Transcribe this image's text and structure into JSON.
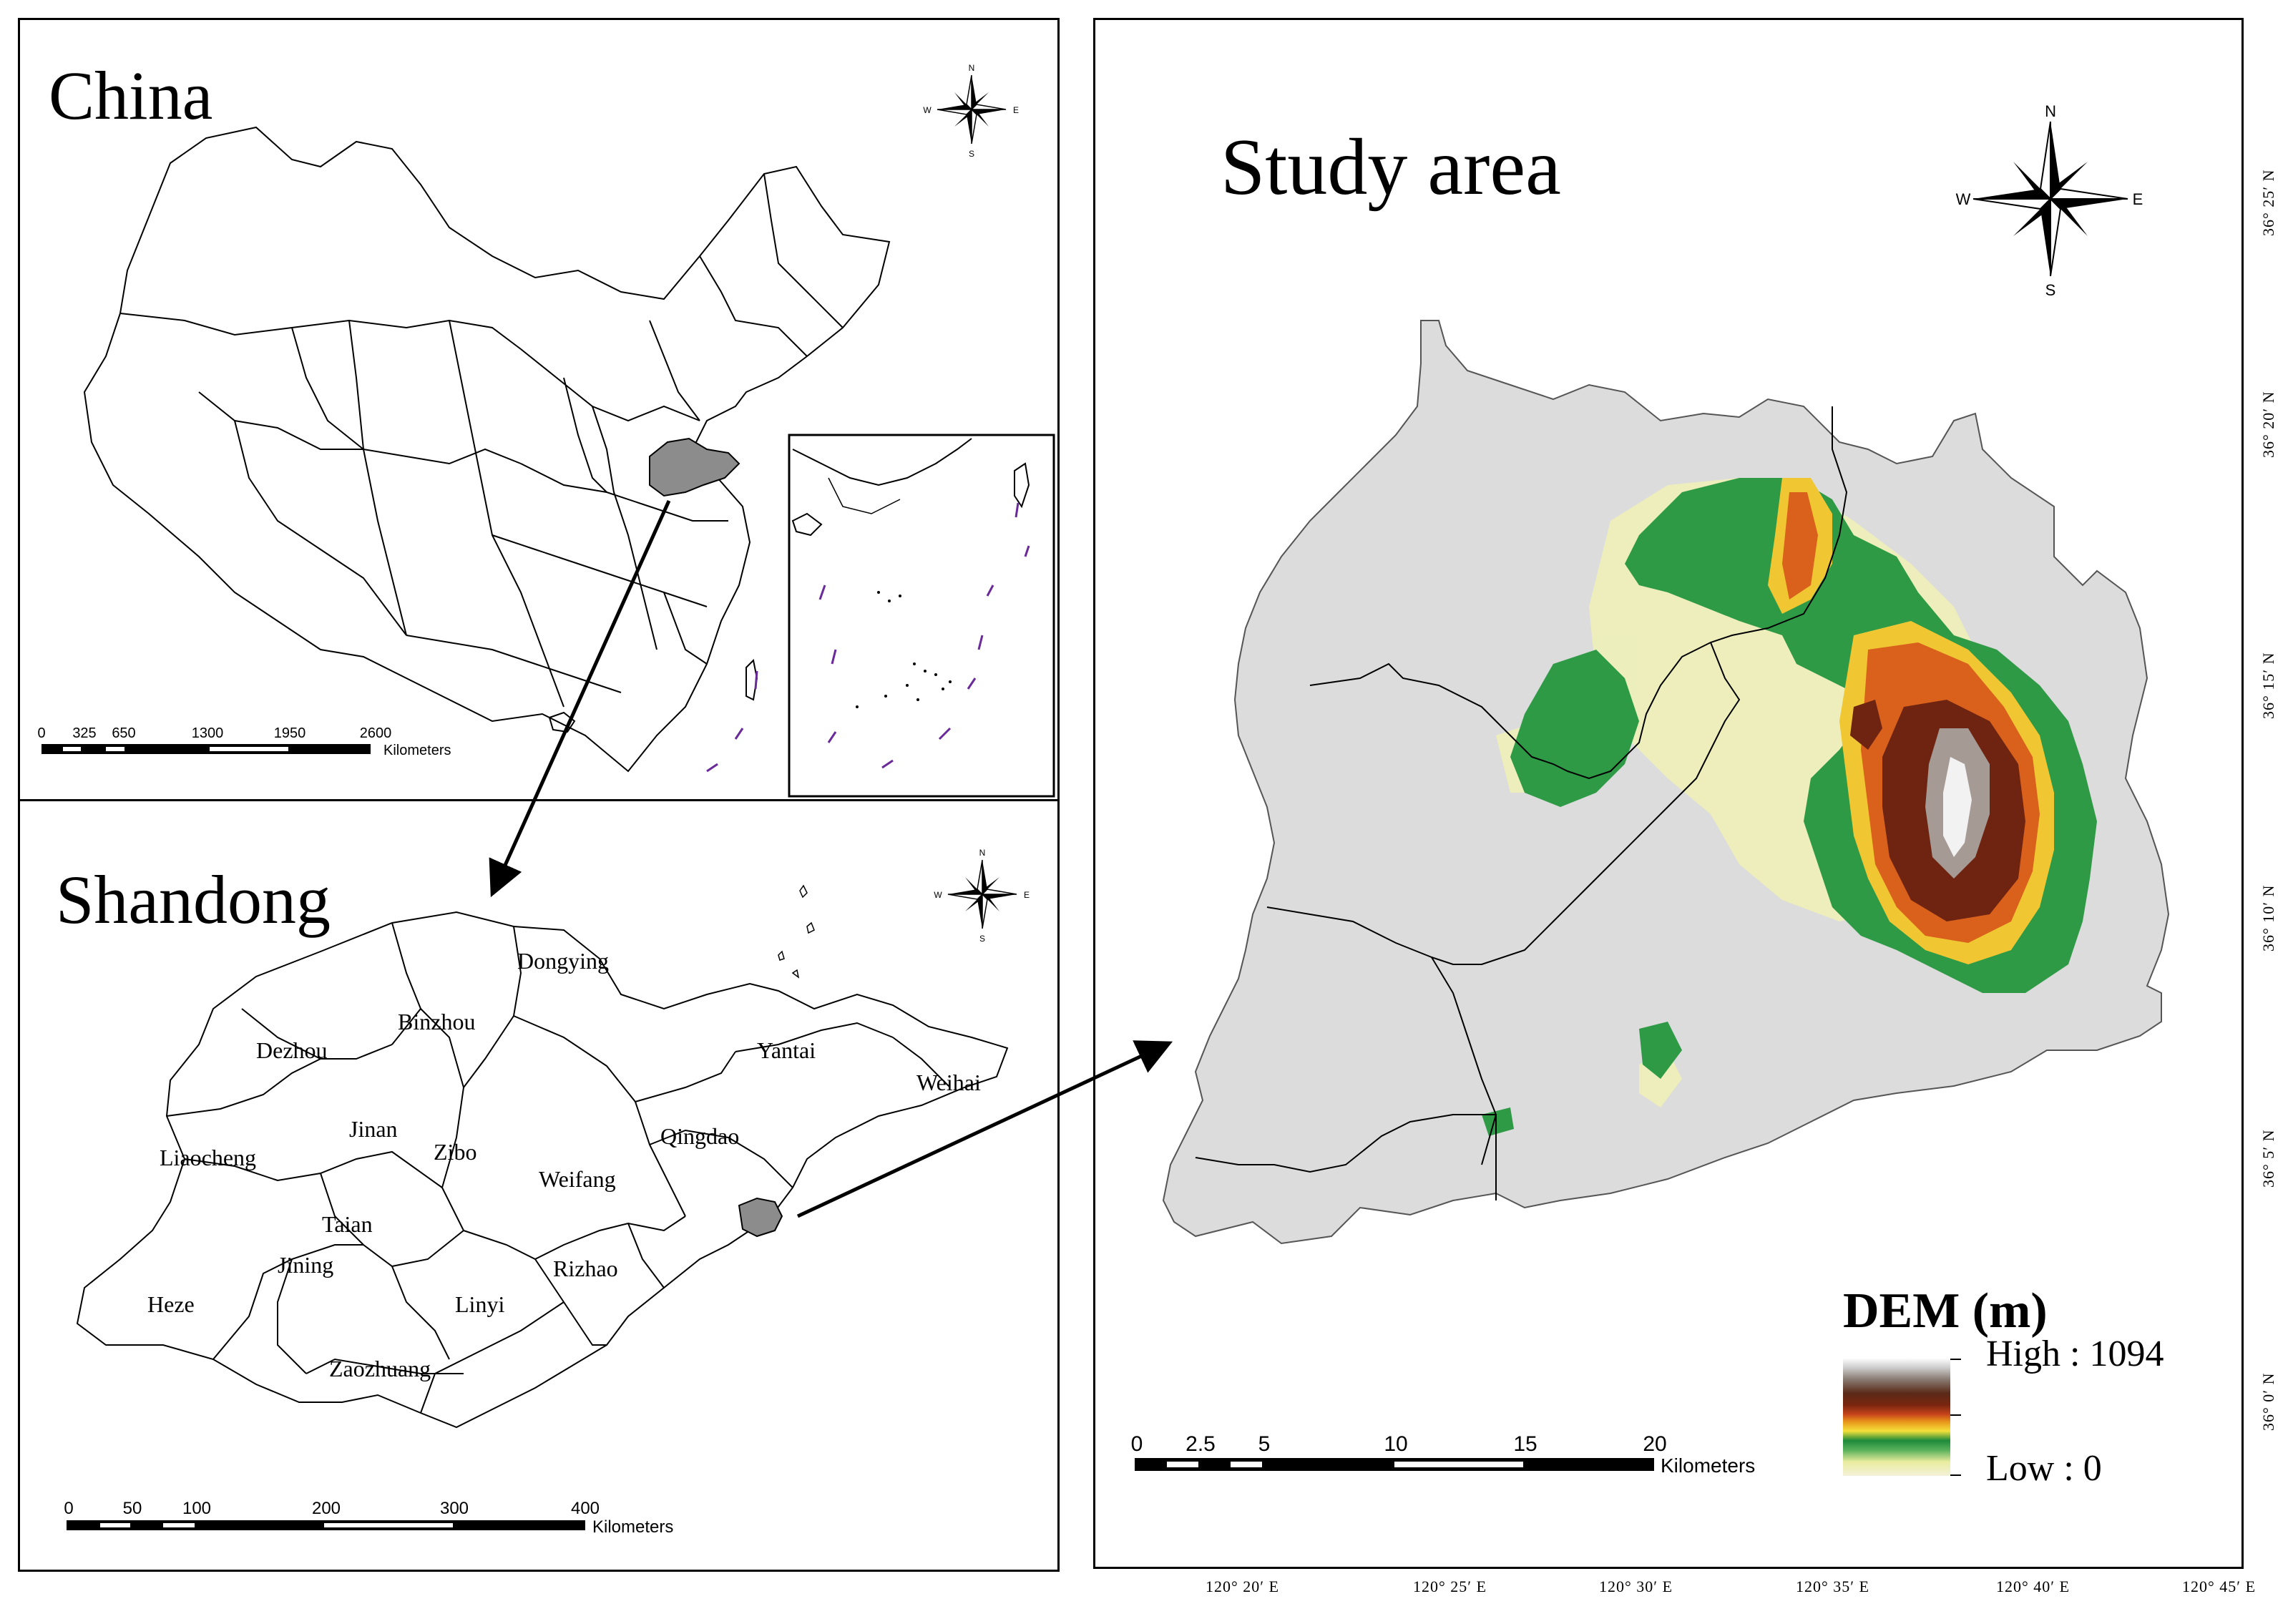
{
  "china": {
    "title": "China",
    "scale_ticks": [
      "0",
      "325",
      "650",
      "1300",
      "1950",
      "2600"
    ],
    "scale_unit": "Kilometers"
  },
  "shandong": {
    "title": "Shandong",
    "cities": [
      "Dongying",
      "Binzhou",
      "Dezhou",
      "Yantai",
      "Weihai",
      "Jinan",
      "Liaocheng",
      "Zibo",
      "Qingdao",
      "Weifang",
      "Taian",
      "Rizhao",
      "Jining",
      "Heze",
      "Linyi",
      "Zaozhuang"
    ],
    "scale_ticks": [
      "0",
      "50",
      "100",
      "200",
      "300",
      "400"
    ],
    "scale_unit": "Kilometers"
  },
  "study": {
    "title": "Study area",
    "scale_ticks": [
      "0",
      "2.5",
      "5",
      "10",
      "15",
      "20"
    ],
    "scale_unit": "Kilometers",
    "legend": {
      "title": "DEM (m)",
      "high_label": "High : 1094",
      "low_label": "Low : 0",
      "colors": [
        "#f3f1da",
        "#e8ec9e",
        "#58b05a",
        "#1d8a3a",
        "#f4e03a",
        "#e8951a",
        "#c7451a",
        "#7a2610",
        "#5a2a18",
        "#8a7d74",
        "#cfcfcf",
        "#ffffff"
      ]
    },
    "longitudes": [
      "120° 20′ E",
      "120° 25′ E",
      "120° 30′ E",
      "120° 35′ E",
      "120° 40′ E",
      "120° 45′ E"
    ],
    "latitudes": [
      "36° 25′ N",
      "36° 20′ N",
      "36° 15′ N",
      "36° 10′ N",
      "36° 5′ N",
      "36° 0′ N"
    ]
  },
  "compass": {
    "n": "N",
    "s": "S",
    "e": "E",
    "w": "W"
  },
  "colors": {
    "highlight": "#8c8c8c",
    "arrow": "#000000",
    "land": "#dcdcdc",
    "dash": "#6a2a9a"
  }
}
